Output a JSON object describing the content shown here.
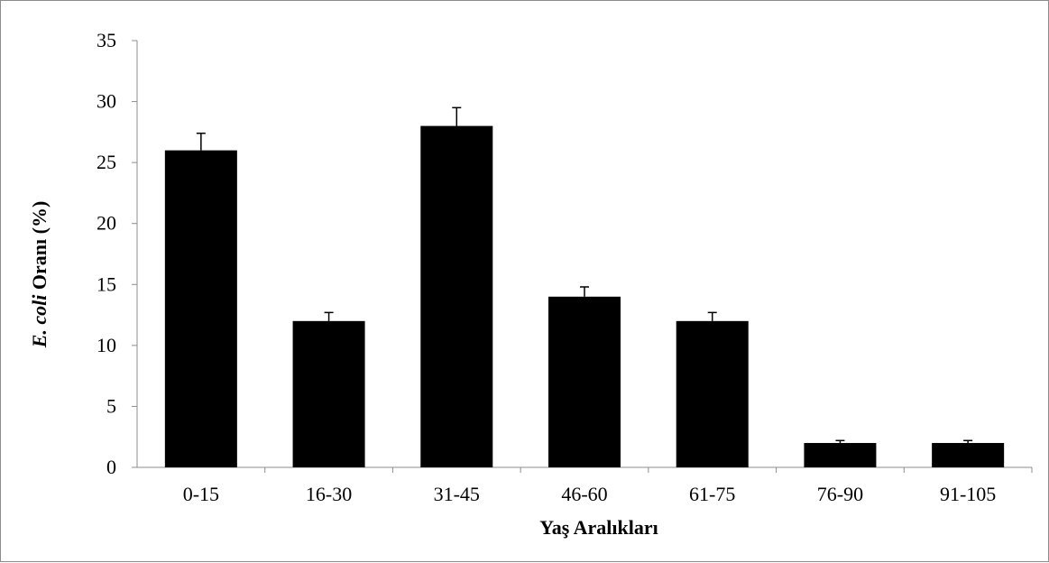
{
  "chart_data": {
    "type": "bar",
    "categories": [
      "0-15",
      "16-30",
      "31-45",
      "46-60",
      "61-75",
      "76-90",
      "91-105"
    ],
    "values": [
      26,
      12,
      28,
      14,
      12,
      2,
      2
    ],
    "error_bars": [
      1.4,
      0.7,
      1.5,
      0.8,
      0.7,
      0.2,
      0.2
    ],
    "xlabel": "Yaş Aralıkları",
    "ylabel_italic": "E. coli",
    "ylabel_rest": " Oranı (%)",
    "ylim": [
      0,
      35
    ],
    "yticks": [
      0,
      5,
      10,
      15,
      20,
      25,
      30,
      35
    ],
    "grid": false,
    "legend": "none",
    "bar_color": "#000000"
  }
}
